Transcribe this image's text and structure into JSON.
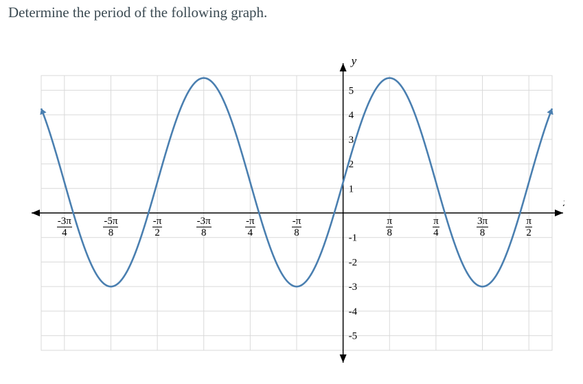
{
  "prompt": "Determine the period of the following graph.",
  "chart": {
    "type": "line",
    "background_color": "#ffffff",
    "grid_color": "#d9d9d9",
    "curve_color": "#4a7fb0",
    "axis_color": "#000000",
    "text_color": "#000000",
    "prompt_color": "#3b4a52",
    "line_width": 2.6,
    "prompt_fontsize": 21,
    "tick_fontsize": 15,
    "axis_label_fontsize": 17,
    "xlim_pi": [
      -0.8125,
      0.5625
    ],
    "ylim": [
      -5.6,
      5.6
    ],
    "x_tick_step_pi": 0.125,
    "y_tick_step": 1,
    "x_axis_label": "x",
    "y_axis_label": "y",
    "x_ticks": [
      {
        "val_pi": -0.75,
        "num": "-3π",
        "den": "4"
      },
      {
        "val_pi": -0.625,
        "num": "-5π",
        "den": "8"
      },
      {
        "val_pi": -0.5,
        "num": "-π",
        "den": "2"
      },
      {
        "val_pi": -0.375,
        "num": "-3π",
        "den": "8"
      },
      {
        "val_pi": -0.25,
        "num": "-π",
        "den": "4"
      },
      {
        "val_pi": -0.125,
        "num": "-π",
        "den": "8"
      },
      {
        "val_pi": 0.125,
        "num": "π",
        "den": "8"
      },
      {
        "val_pi": 0.25,
        "num": "π",
        "den": "4"
      },
      {
        "val_pi": 0.375,
        "num": "3π",
        "den": "8"
      },
      {
        "val_pi": 0.5,
        "num": "π",
        "den": "2"
      }
    ],
    "y_ticks": [
      {
        "val": 5,
        "label": "5"
      },
      {
        "val": 4,
        "label": "4"
      },
      {
        "val": 3,
        "label": "3"
      },
      {
        "val": 2,
        "label": "2"
      },
      {
        "val": 1,
        "label": "1"
      },
      {
        "val": -1,
        "label": "-1"
      },
      {
        "val": -2,
        "label": "-2"
      },
      {
        "val": -3,
        "label": "-3"
      },
      {
        "val": -4,
        "label": "-4"
      },
      {
        "val": -5,
        "label": "-5"
      }
    ],
    "function": {
      "formula": "A*sin(2*pi*(x - x0)/T) + C",
      "A": 4.25,
      "C": 1.25,
      "T_pi": 0.5,
      "x0_pi": -0.5
    }
  }
}
